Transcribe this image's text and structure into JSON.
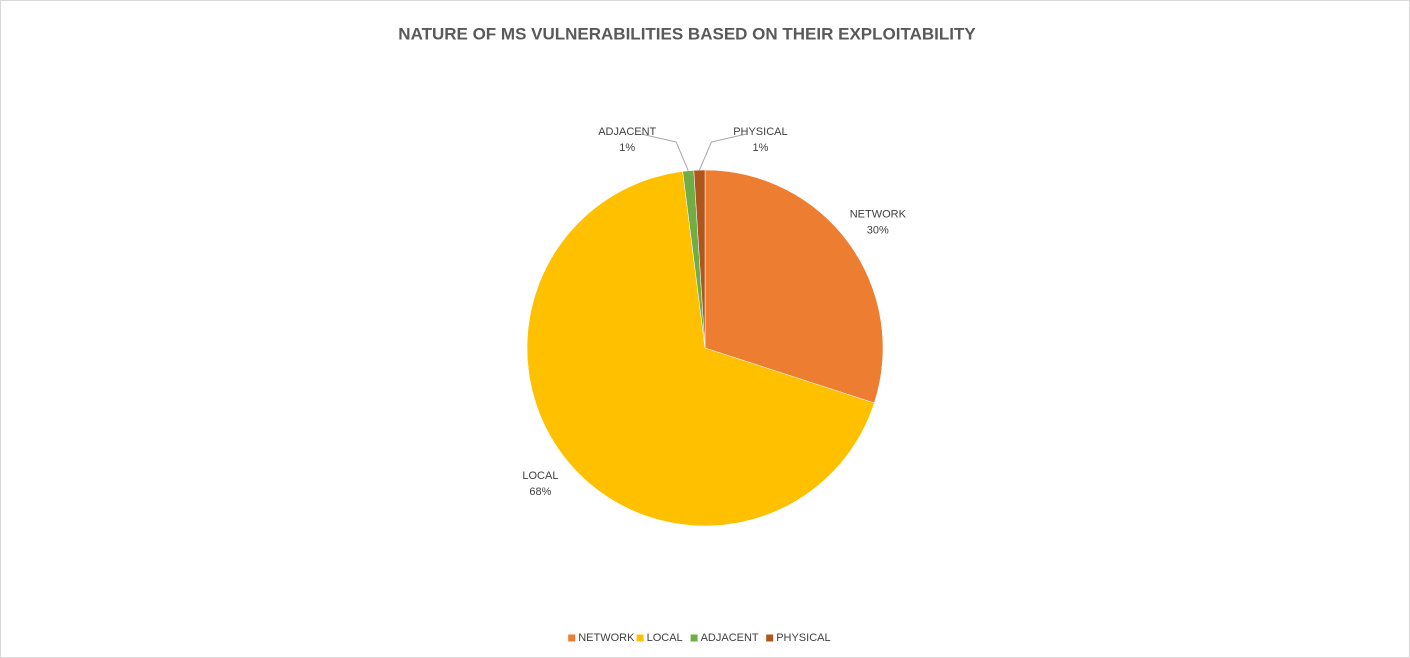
{
  "chart_data": {
    "type": "pie",
    "title": "NATURE OF MS VULNERABILITIES BASED ON THEIR EXPLOITABILITY",
    "categories": [
      "NETWORK",
      "LOCAL",
      "ADJACENT",
      "PHYSICAL"
    ],
    "values": [
      30,
      68,
      1,
      1
    ],
    "value_labels": [
      "30%",
      "68%",
      "1%",
      "1%"
    ],
    "colors": [
      "#ED7D31",
      "#FFC000",
      "#70AD47",
      "#B0561C"
    ],
    "legend": "bottom"
  }
}
